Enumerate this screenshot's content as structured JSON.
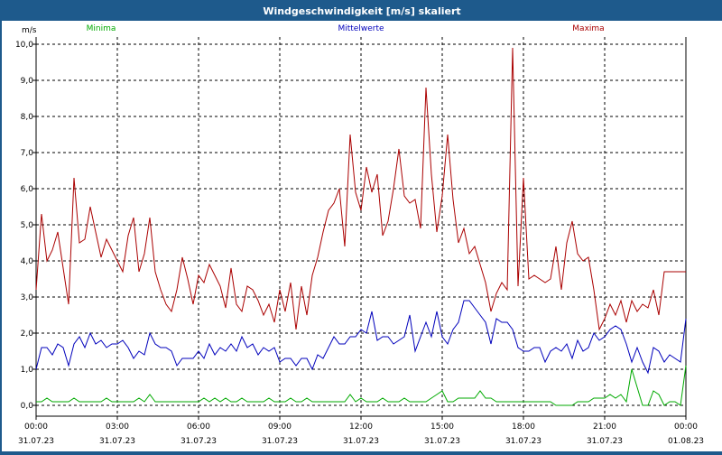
{
  "window": {
    "title": "Windgeschwindigkeit [m/s] skaliert"
  },
  "chart_data": {
    "type": "line",
    "title": "Windgeschwindigkeit [m/s] skaliert",
    "ylabel": "m/s",
    "xlabel": "",
    "xlim": [
      0,
      24
    ],
    "ylim": [
      -0.3,
      10.2
    ],
    "grid": true,
    "legend_position": "top",
    "x_ticks": [
      {
        "time": "00:00",
        "date": "31.07.23"
      },
      {
        "time": "03:00",
        "date": "31.07.23"
      },
      {
        "time": "06:00",
        "date": "31.07.23"
      },
      {
        "time": "09:00",
        "date": "31.07.23"
      },
      {
        "time": "12:00",
        "date": "31.07.23"
      },
      {
        "time": "15:00",
        "date": "31.07.23"
      },
      {
        "time": "18:00",
        "date": "31.07.23"
      },
      {
        "time": "21:00",
        "date": "31.07.23"
      },
      {
        "time": "00:00",
        "date": "01.08.23"
      }
    ],
    "y_ticks": [
      "0,0",
      "1,0",
      "2,0",
      "3,0",
      "4,0",
      "5,0",
      "6,0",
      "7,0",
      "8,0",
      "9,0",
      "10,0"
    ],
    "series": [
      {
        "name": "Minima",
        "color": "#00aa00",
        "x": [
          0,
          0.2,
          0.4,
          0.6,
          0.8,
          1.0,
          1.2,
          1.4,
          1.6,
          1.8,
          2.0,
          2.2,
          2.4,
          2.6,
          2.8,
          3.0,
          3.2,
          3.4,
          3.6,
          3.8,
          4.0,
          4.2,
          4.4,
          4.6,
          4.8,
          5.0,
          5.2,
          5.4,
          5.6,
          5.8,
          6.0,
          6.2,
          6.4,
          6.6,
          6.8,
          7.0,
          7.2,
          7.4,
          7.6,
          7.8,
          8.0,
          8.2,
          8.4,
          8.6,
          8.8,
          9.0,
          9.2,
          9.4,
          9.6,
          9.8,
          10.0,
          10.2,
          10.4,
          10.6,
          10.8,
          11.0,
          11.2,
          11.4,
          11.6,
          11.8,
          12.0,
          12.2,
          12.4,
          12.6,
          12.8,
          13.0,
          13.2,
          13.4,
          13.6,
          13.8,
          14.0,
          14.2,
          14.4,
          14.6,
          14.8,
          15.0,
          15.2,
          15.4,
          15.6,
          15.8,
          16.0,
          16.2,
          16.4,
          16.6,
          16.8,
          17.0,
          17.2,
          17.4,
          17.6,
          17.8,
          18.0,
          18.2,
          18.4,
          18.6,
          18.8,
          19.0,
          19.2,
          19.4,
          19.6,
          19.8,
          20.0,
          20.2,
          20.4,
          20.6,
          20.8,
          21.0,
          21.2,
          21.4,
          21.6,
          21.8,
          22.0,
          22.2,
          22.4,
          22.6,
          22.8,
          23.0,
          23.2,
          23.4,
          23.6,
          23.8,
          24.0
        ],
        "y": [
          0.1,
          0.1,
          0.2,
          0.1,
          0.1,
          0.1,
          0.1,
          0.2,
          0.1,
          0.1,
          0.1,
          0.1,
          0.1,
          0.2,
          0.1,
          0.1,
          0.1,
          0.1,
          0.1,
          0.2,
          0.1,
          0.3,
          0.1,
          0.1,
          0.1,
          0.1,
          0.1,
          0.1,
          0.1,
          0.1,
          0.1,
          0.2,
          0.1,
          0.2,
          0.1,
          0.2,
          0.1,
          0.1,
          0.2,
          0.1,
          0.1,
          0.1,
          0.1,
          0.2,
          0.1,
          0.1,
          0.1,
          0.2,
          0.1,
          0.1,
          0.2,
          0.1,
          0.1,
          0.1,
          0.1,
          0.1,
          0.1,
          0.1,
          0.3,
          0.1,
          0.2,
          0.1,
          0.1,
          0.1,
          0.2,
          0.1,
          0.1,
          0.1,
          0.2,
          0.1,
          0.1,
          0.1,
          0.1,
          0.2,
          0.3,
          0.4,
          0.1,
          0.1,
          0.2,
          0.2,
          0.2,
          0.2,
          0.4,
          0.2,
          0.2,
          0.1,
          0.1,
          0.1,
          0.1,
          0.1,
          0.1,
          0.1,
          0.1,
          0.1,
          0.1,
          0.1,
          0.0,
          0.0,
          0.0,
          0.0,
          0.1,
          0.1,
          0.1,
          0.2,
          0.2,
          0.2,
          0.3,
          0.2,
          0.3,
          0.1,
          1.0,
          0.5,
          0.0,
          0.0,
          0.4,
          0.3,
          0.0,
          0.1,
          0.1,
          0.0,
          1.1
        ]
      },
      {
        "name": "Mittelwerte",
        "color": "#0000bb",
        "x": [
          0,
          0.2,
          0.4,
          0.6,
          0.8,
          1.0,
          1.2,
          1.4,
          1.6,
          1.8,
          2.0,
          2.2,
          2.4,
          2.6,
          2.8,
          3.0,
          3.2,
          3.4,
          3.6,
          3.8,
          4.0,
          4.2,
          4.4,
          4.6,
          4.8,
          5.0,
          5.2,
          5.4,
          5.6,
          5.8,
          6.0,
          6.2,
          6.4,
          6.6,
          6.8,
          7.0,
          7.2,
          7.4,
          7.6,
          7.8,
          8.0,
          8.2,
          8.4,
          8.6,
          8.8,
          9.0,
          9.2,
          9.4,
          9.6,
          9.8,
          10.0,
          10.2,
          10.4,
          10.6,
          10.8,
          11.0,
          11.2,
          11.4,
          11.6,
          11.8,
          12.0,
          12.2,
          12.4,
          12.6,
          12.8,
          13.0,
          13.2,
          13.4,
          13.6,
          13.8,
          14.0,
          14.2,
          14.4,
          14.6,
          14.8,
          15.0,
          15.2,
          15.4,
          15.6,
          15.8,
          16.0,
          16.2,
          16.4,
          16.6,
          16.8,
          17.0,
          17.2,
          17.4,
          17.6,
          17.8,
          18.0,
          18.2,
          18.4,
          18.6,
          18.8,
          19.0,
          19.2,
          19.4,
          19.6,
          19.8,
          20.0,
          20.2,
          20.4,
          20.6,
          20.8,
          21.0,
          21.2,
          21.4,
          21.6,
          21.8,
          22.0,
          22.2,
          22.4,
          22.6,
          22.8,
          23.0,
          23.2,
          23.4,
          23.6,
          23.8,
          24.0
        ],
        "y": [
          1.0,
          1.6,
          1.6,
          1.4,
          1.7,
          1.6,
          1.1,
          1.7,
          1.9,
          1.6,
          2.0,
          1.7,
          1.8,
          1.6,
          1.7,
          1.7,
          1.8,
          1.6,
          1.3,
          1.5,
          1.4,
          2.0,
          1.7,
          1.6,
          1.6,
          1.5,
          1.1,
          1.3,
          1.3,
          1.3,
          1.5,
          1.3,
          1.7,
          1.4,
          1.6,
          1.5,
          1.7,
          1.5,
          1.9,
          1.6,
          1.7,
          1.4,
          1.6,
          1.5,
          1.6,
          1.2,
          1.3,
          1.3,
          1.1,
          1.3,
          1.3,
          1.0,
          1.4,
          1.3,
          1.6,
          1.9,
          1.7,
          1.7,
          1.9,
          1.9,
          2.1,
          2.0,
          2.6,
          1.8,
          1.9,
          1.9,
          1.7,
          1.8,
          1.9,
          2.5,
          1.5,
          1.9,
          2.3,
          1.9,
          2.6,
          1.9,
          1.7,
          2.1,
          2.3,
          2.9,
          2.9,
          2.7,
          2.5,
          2.3,
          1.7,
          2.4,
          2.3,
          2.3,
          2.1,
          1.6,
          1.5,
          1.5,
          1.6,
          1.6,
          1.2,
          1.5,
          1.6,
          1.5,
          1.7,
          1.3,
          1.8,
          1.5,
          1.6,
          2.0,
          1.8,
          1.9,
          2.1,
          2.2,
          2.1,
          1.7,
          1.2,
          1.6,
          1.2,
          0.9,
          1.6,
          1.5,
          1.2,
          1.4,
          1.3,
          1.2,
          2.4
        ]
      },
      {
        "name": "Maxima",
        "color": "#aa0000",
        "x": [
          0,
          0.2,
          0.4,
          0.6,
          0.8,
          1.0,
          1.2,
          1.4,
          1.6,
          1.8,
          2.0,
          2.2,
          2.4,
          2.6,
          2.8,
          3.0,
          3.2,
          3.4,
          3.6,
          3.8,
          4.0,
          4.2,
          4.4,
          4.6,
          4.8,
          5.0,
          5.2,
          5.4,
          5.6,
          5.8,
          6.0,
          6.2,
          6.4,
          6.6,
          6.8,
          7.0,
          7.2,
          7.4,
          7.6,
          7.8,
          8.0,
          8.2,
          8.4,
          8.6,
          8.8,
          9.0,
          9.2,
          9.4,
          9.6,
          9.8,
          10.0,
          10.2,
          10.4,
          10.6,
          10.8,
          11.0,
          11.2,
          11.4,
          11.6,
          11.8,
          12.0,
          12.2,
          12.4,
          12.6,
          12.8,
          13.0,
          13.2,
          13.4,
          13.6,
          13.8,
          14.0,
          14.2,
          14.4,
          14.6,
          14.8,
          15.0,
          15.2,
          15.4,
          15.6,
          15.8,
          16.0,
          16.2,
          16.4,
          16.6,
          16.8,
          17.0,
          17.2,
          17.4,
          17.6,
          17.8,
          18.0,
          18.2,
          18.4,
          18.6,
          18.8,
          19.0,
          19.2,
          19.4,
          19.6,
          19.8,
          20.0,
          20.2,
          20.4,
          20.6,
          20.8,
          21.0,
          21.2,
          21.4,
          21.6,
          21.8,
          22.0,
          22.2,
          22.4,
          22.6,
          22.8,
          23.0,
          23.2,
          23.4,
          23.6,
          23.8,
          24.0
        ],
        "y": [
          3.2,
          5.3,
          4.0,
          4.3,
          4.8,
          3.8,
          2.8,
          6.3,
          4.5,
          4.6,
          5.5,
          4.8,
          4.1,
          4.6,
          4.3,
          4.0,
          3.7,
          4.7,
          5.2,
          3.7,
          4.2,
          5.2,
          3.7,
          3.2,
          2.8,
          2.6,
          3.2,
          4.1,
          3.5,
          2.8,
          3.6,
          3.4,
          3.9,
          3.6,
          3.3,
          2.7,
          3.8,
          2.8,
          2.6,
          3.3,
          3.2,
          2.9,
          2.5,
          2.8,
          2.3,
          3.2,
          2.6,
          3.4,
          2.1,
          3.3,
          2.5,
          3.6,
          4.1,
          4.8,
          5.4,
          5.6,
          6.0,
          4.4,
          7.5,
          5.9,
          5.4,
          6.6,
          5.9,
          6.4,
          4.7,
          5.1,
          6.0,
          7.1,
          5.8,
          5.6,
          5.7,
          4.9,
          8.8,
          6.4,
          4.8,
          5.8,
          7.5,
          5.7,
          4.5,
          4.9,
          4.2,
          4.4,
          3.9,
          3.4,
          2.6,
          3.1,
          3.4,
          3.2,
          9.9,
          3.3,
          6.3,
          3.5,
          3.6,
          3.5,
          3.4,
          3.5,
          4.4,
          3.2,
          4.5,
          5.1,
          4.2,
          4.0,
          4.1,
          3.2,
          2.1,
          2.4,
          2.8,
          2.5,
          2.9,
          2.3,
          2.9,
          2.6,
          2.8,
          2.7,
          3.2,
          2.5,
          3.7,
          3.7,
          3.7,
          3.7,
          3.7
        ]
      }
    ]
  }
}
